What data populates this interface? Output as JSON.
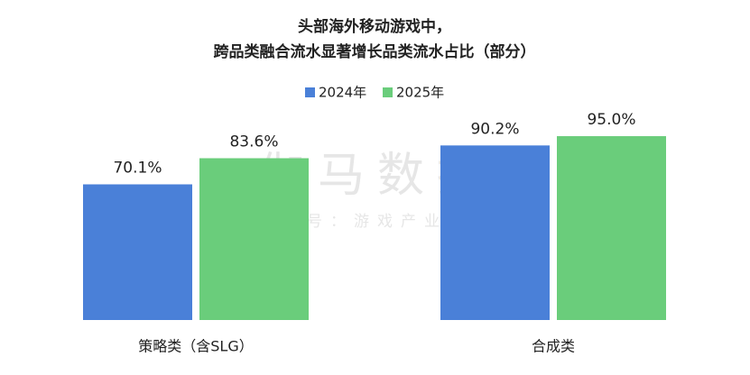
{
  "chart_data": {
    "type": "bar",
    "title": [
      "头部海外移动游戏中，",
      "跨品类融合流水显著增长品类流水占比（部分）"
    ],
    "categories": [
      "策略类（含SLG）",
      "合成类"
    ],
    "series": [
      {
        "name": "2024年",
        "color": "#4a80d8",
        "values": [
          70.1,
          90.2
        ],
        "value_labels": [
          "70.1%",
          "90.2%"
        ]
      },
      {
        "name": "2025年",
        "color": "#6acd7b",
        "values": [
          83.6,
          95.0
        ],
        "value_labels": [
          "83.6%",
          "95.0%"
        ]
      }
    ],
    "ylim": [
      0,
      100
    ],
    "watermark": [
      "伽马数据",
      "微信号：游戏产业报告"
    ]
  }
}
